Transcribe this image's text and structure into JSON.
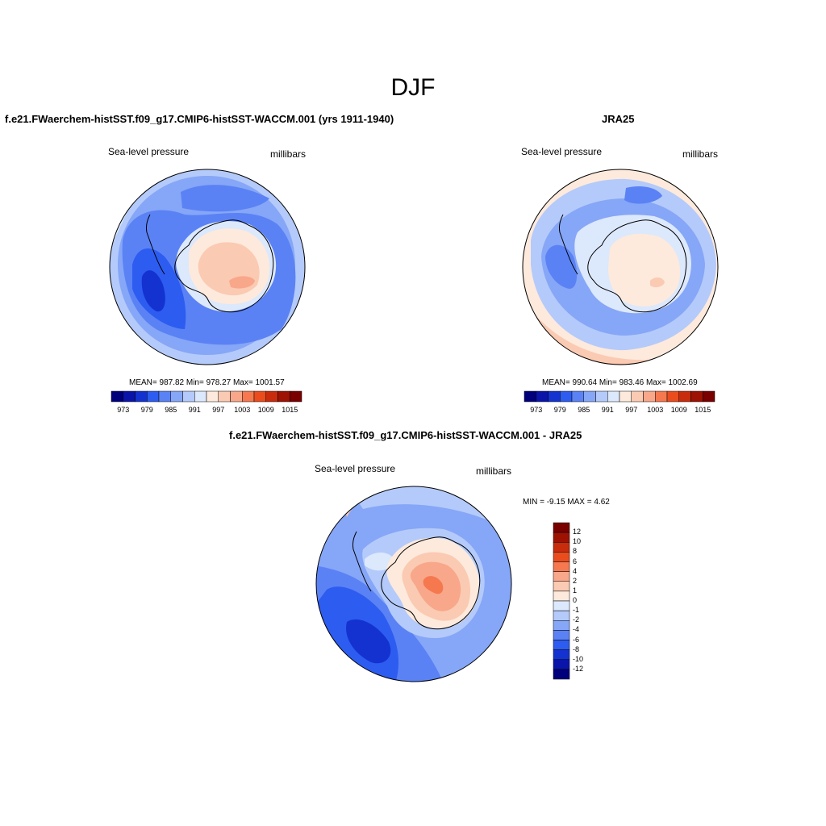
{
  "figure": {
    "title": "DJF"
  },
  "panels": [
    {
      "title": "f.e21.FWaerchem-histSST.f09_g17.CMIP6-histSST-WACCM.001 (yrs 1911-1940)",
      "variable": "Sea-level pressure",
      "units": "millibars",
      "stats": "MEAN= 987.82  Min= 978.27  Max= 1001.57"
    },
    {
      "title": "JRA25",
      "variable": "Sea-level pressure",
      "units": "millibars",
      "stats": "MEAN= 990.64  Min= 983.46  Max= 1002.69"
    },
    {
      "title": "f.e21.FWaerchem-histSST.f09_g17.CMIP6-histSST-WACCM.001 - JRA25",
      "variable": "Sea-level pressure",
      "units": "millibars",
      "stats": "MIN =  -9.15 MAX =   4.62"
    }
  ],
  "chart_data": [
    {
      "type": "heatmap",
      "projection": "south-polar-stereographic",
      "colorbar": {
        "orientation": "horizontal",
        "levels": [
          973,
          976,
          979,
          982,
          985,
          988,
          991,
          994,
          997,
          1000,
          1003,
          1006,
          1009,
          1012,
          1015
        ],
        "tick_labels": [
          "973",
          "979",
          "985",
          "991",
          "997",
          "1003",
          "1009",
          "1015"
        ],
        "colors": [
          "#00007d",
          "#0a14a8",
          "#1432d0",
          "#2d5cf0",
          "#5a82f5",
          "#86a6f7",
          "#b4cafa",
          "#dce8fc",
          "#fdeadc",
          "#fbcab2",
          "#f8a78a",
          "#f5784f",
          "#ea4c1e",
          "#c82c0c",
          "#9e1203",
          "#7a0000"
        ]
      }
    },
    {
      "type": "heatmap",
      "projection": "south-polar-stereographic",
      "colorbar": {
        "orientation": "horizontal",
        "levels": [
          973,
          976,
          979,
          982,
          985,
          988,
          991,
          994,
          997,
          1000,
          1003,
          1006,
          1009,
          1012,
          1015
        ],
        "tick_labels": [
          "973",
          "979",
          "985",
          "991",
          "997",
          "1003",
          "1009",
          "1015"
        ],
        "colors": [
          "#00007d",
          "#0a14a8",
          "#1432d0",
          "#2d5cf0",
          "#5a82f5",
          "#86a6f7",
          "#b4cafa",
          "#dce8fc",
          "#fdeadc",
          "#fbcab2",
          "#f8a78a",
          "#f5784f",
          "#ea4c1e",
          "#c82c0c",
          "#9e1203",
          "#7a0000"
        ]
      }
    },
    {
      "type": "heatmap",
      "projection": "south-polar-stereographic",
      "colorbar": {
        "orientation": "vertical",
        "tick_labels": [
          "12",
          "10",
          "8",
          "6",
          "4",
          "2",
          "1",
          "0",
          "-1",
          "-2",
          "-4",
          "-6",
          "-8",
          "-10",
          "-12"
        ],
        "colors": [
          "#7a0000",
          "#9e1203",
          "#c82c0c",
          "#ea4c1e",
          "#f5784f",
          "#f8a78a",
          "#fbcab2",
          "#fdeadc",
          "#dce8fc",
          "#b4cafa",
          "#86a6f7",
          "#5a82f5",
          "#2d5cf0",
          "#1432d0",
          "#0a14a8",
          "#00007d"
        ]
      }
    }
  ]
}
